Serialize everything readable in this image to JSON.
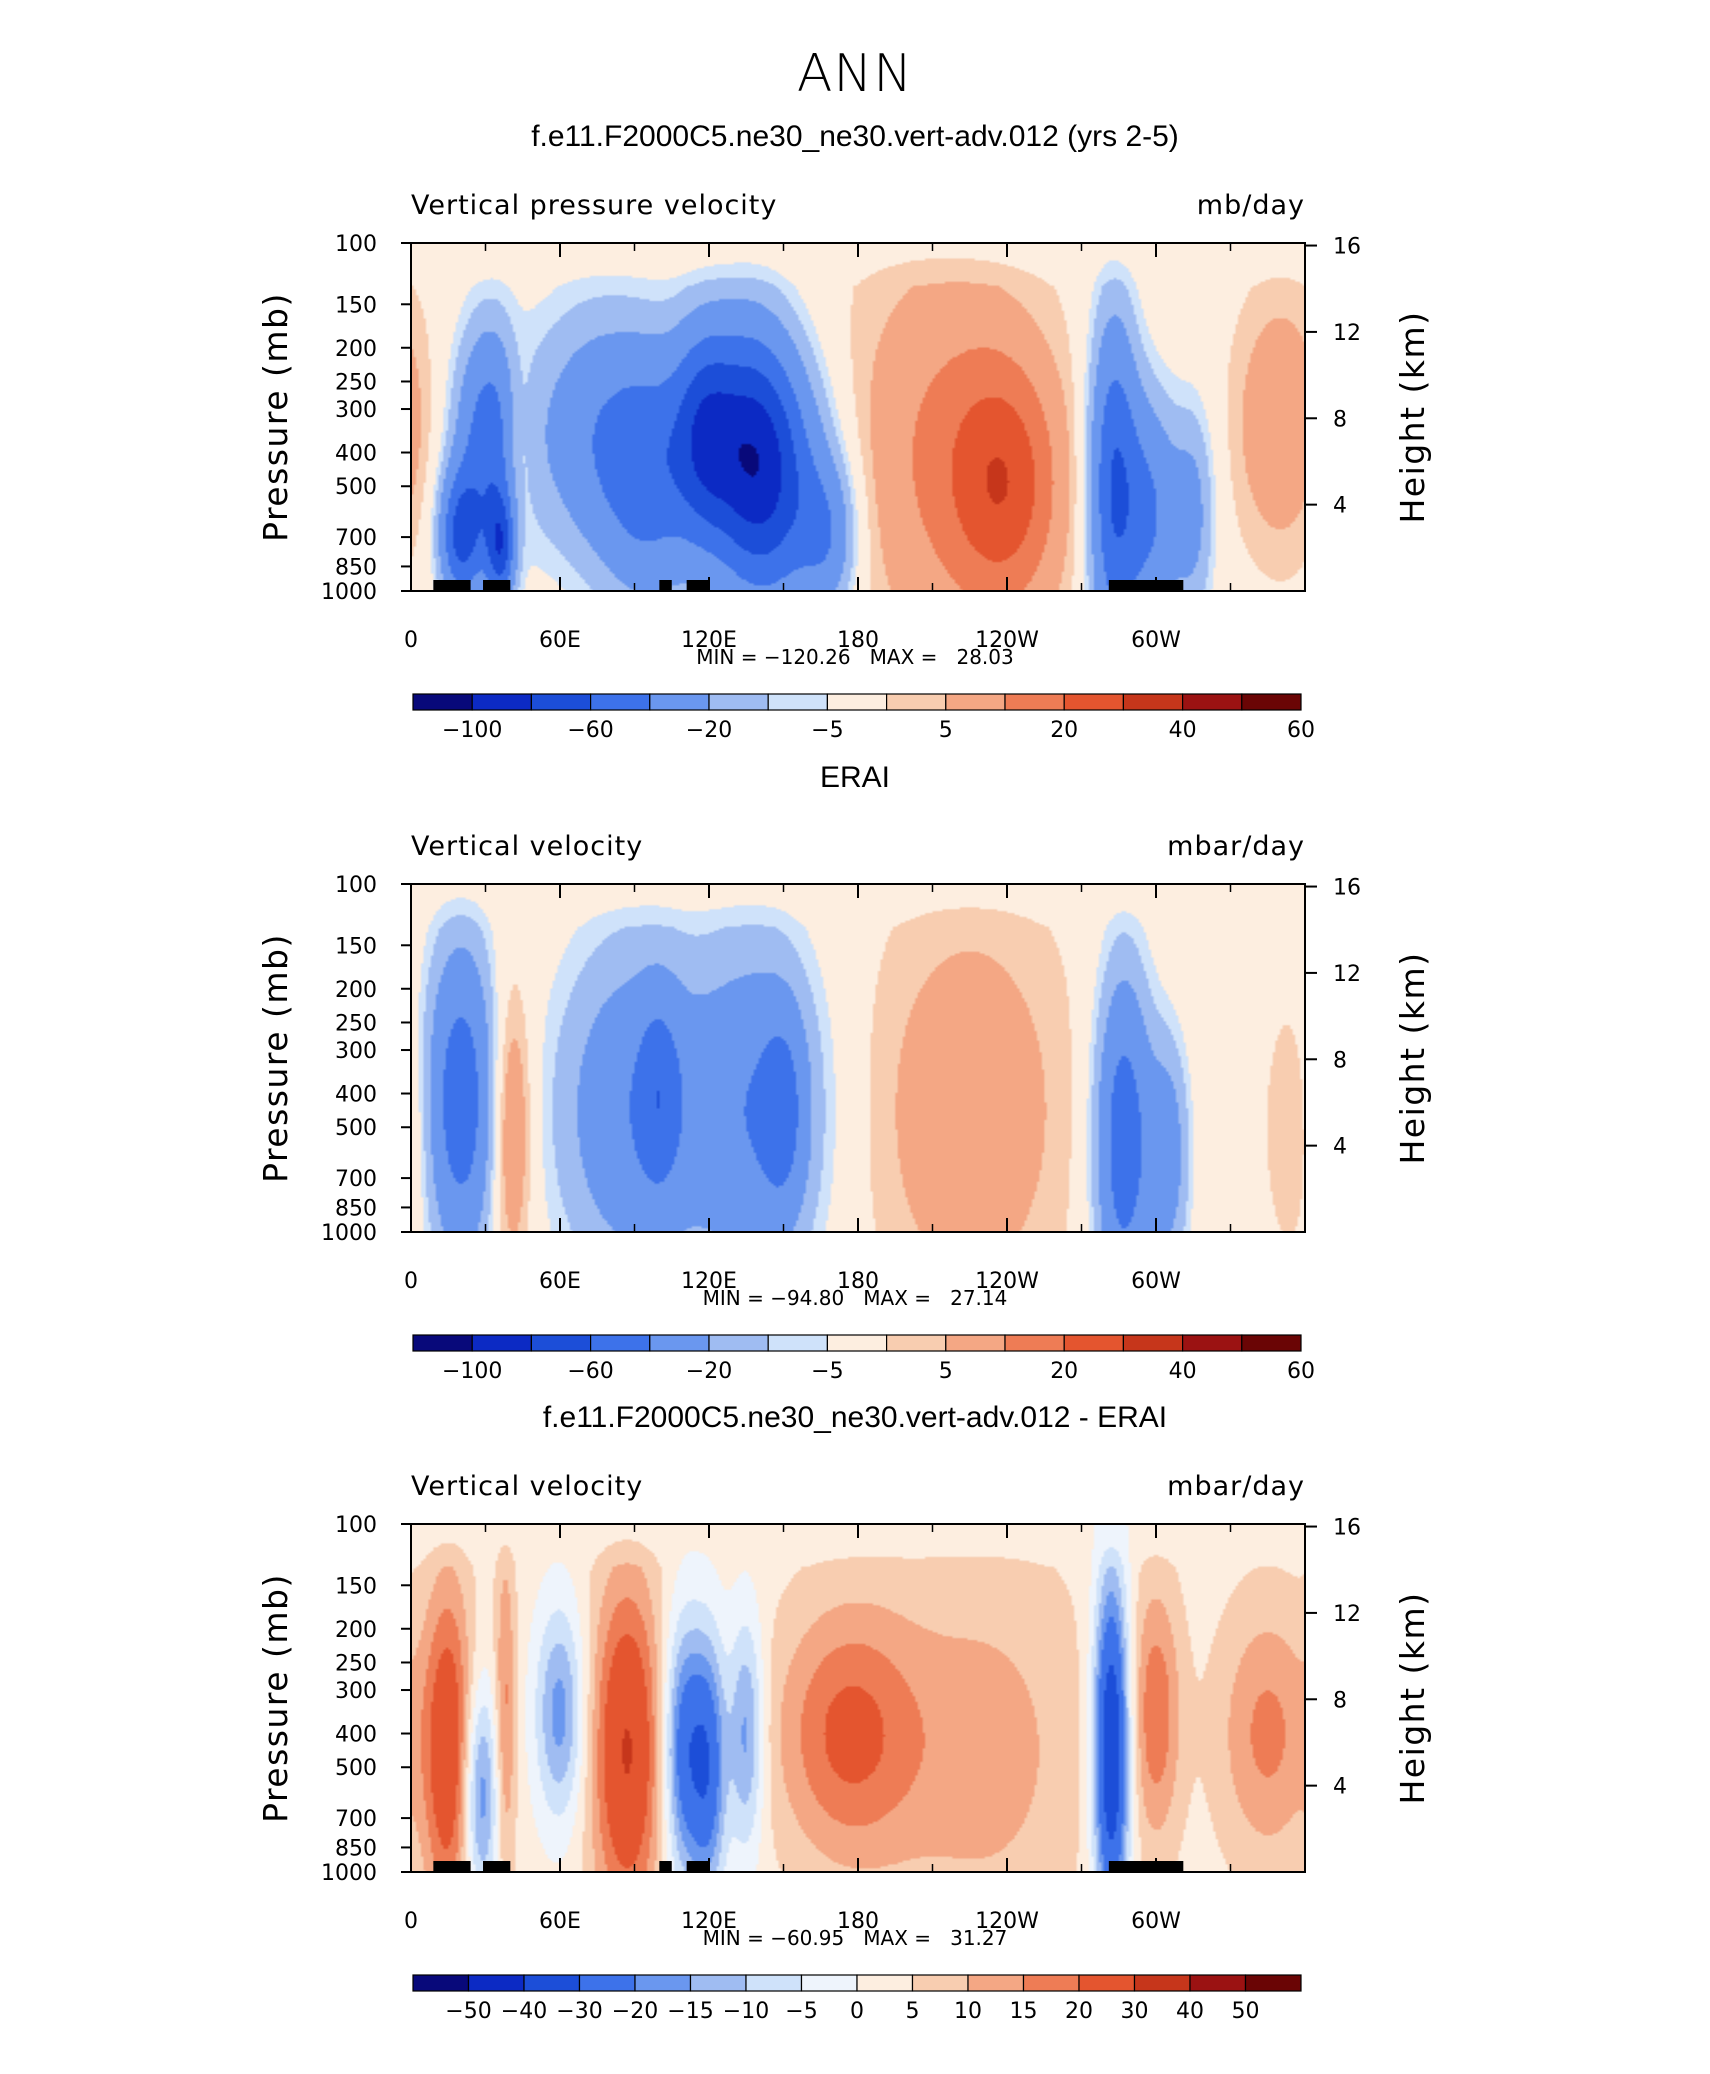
{
  "suptitle": "ANN",
  "chart_data": [
    {
      "type": "heatmap",
      "title": "f.e11.F2000C5.ne30_ne30.vert-adv.012 (yrs 2-5)",
      "variable": "Vertical pressure velocity",
      "units": "mb/day",
      "ylabel": "Pressure (mb)",
      "ylabel_right": "Height (km)",
      "x_ticks": [
        "0",
        "60E",
        "120E",
        "180",
        "120W",
        "60W"
      ],
      "y_ticks": [
        "100",
        "150",
        "200",
        "250",
        "300",
        "400",
        "500",
        "700",
        "850",
        "1000"
      ],
      "y_ticks_right": [
        "16",
        "12",
        "8",
        "4"
      ],
      "min_max": "MIN = −120.26   MAX =   28.03",
      "min": -120.26,
      "max": 28.03,
      "colorbar_labels": [
        "−100",
        "−60",
        "−20",
        "−5",
        "5",
        "20",
        "40",
        "60"
      ],
      "colorbar_colors": [
        "#08097a",
        "#0c2ac4",
        "#1c4ed8",
        "#3d72ea",
        "#6a97ef",
        "#9fbcf2",
        "#cfe2fa",
        "#fdeee0",
        "#f8cdb0",
        "#f4a784",
        "#ee7c55",
        "#e4552f",
        "#c6361b",
        "#9b1212",
        "#6a0505"
      ],
      "land_bars": [
        [
          9,
          24
        ],
        [
          29,
          40
        ],
        [
          100,
          105
        ],
        [
          111,
          120
        ],
        [
          281,
          311
        ]
      ],
      "blobs": [
        {
          "lon": 32,
          "p": 380,
          "wl": 10,
          "wp": 0.55,
          "a": -55
        },
        {
          "lon": 20,
          "p": 700,
          "wl": 6,
          "wp": 0.3,
          "a": -60
        },
        {
          "lon": 36,
          "p": 750,
          "wl": 4,
          "wp": 0.25,
          "a": -60
        },
        {
          "lon": 43,
          "p": 380,
          "wl": 5,
          "wp": 0.45,
          "a": 22
        },
        {
          "lon": 70,
          "p": 350,
          "wl": 16,
          "wp": 0.6,
          "a": -30
        },
        {
          "lon": 96,
          "p": 450,
          "wl": 14,
          "wp": 0.6,
          "a": -50
        },
        {
          "lon": 118,
          "p": 350,
          "wl": 9,
          "wp": 0.5,
          "a": -55
        },
        {
          "lon": 136,
          "p": 400,
          "wl": 12,
          "wp": 0.6,
          "a": -70
        },
        {
          "lon": 150,
          "p": 500,
          "wl": 14,
          "wp": 0.6,
          "a": -45
        },
        {
          "lon": 168,
          "p": 700,
          "wl": 8,
          "wp": 0.35,
          "a": -30
        },
        {
          "lon": 213,
          "p": 400,
          "wl": 26,
          "wp": 0.9,
          "a": 18
        },
        {
          "lon": 240,
          "p": 500,
          "wl": 16,
          "wp": 0.6,
          "a": 28
        },
        {
          "lon": 283,
          "p": 500,
          "wl": 7,
          "wp": 0.8,
          "a": -60
        },
        {
          "lon": 298,
          "p": 600,
          "wl": 8,
          "wp": 0.55,
          "a": -40
        },
        {
          "lon": 315,
          "p": 600,
          "wl": 6,
          "wp": 0.5,
          "a": -25
        },
        {
          "lon": 350,
          "p": 330,
          "wl": 12,
          "wp": 0.55,
          "a": 18
        }
      ]
    },
    {
      "type": "heatmap",
      "title": "ERAI",
      "variable": "Vertical velocity",
      "units": "mbar/day",
      "ylabel": "Pressure (mb)",
      "ylabel_right": "Height (km)",
      "x_ticks": [
        "0",
        "60E",
        "120E",
        "180",
        "120W",
        "60W"
      ],
      "y_ticks": [
        "100",
        "150",
        "200",
        "250",
        "300",
        "400",
        "500",
        "700",
        "850",
        "1000"
      ],
      "y_ticks_right": [
        "16",
        "12",
        "8",
        "4"
      ],
      "min_max": "MIN = −94.80   MAX =   27.14",
      "min": -94.8,
      "max": 27.14,
      "colorbar_labels": [
        "−100",
        "−60",
        "−20",
        "−5",
        "5",
        "20",
        "40",
        "60"
      ],
      "colorbar_colors": [
        "#08097a",
        "#0c2ac4",
        "#1c4ed8",
        "#3d72ea",
        "#6a97ef",
        "#9fbcf2",
        "#cfe2fa",
        "#fdeee0",
        "#f8cdb0",
        "#f4a784",
        "#ee7c55",
        "#e4552f",
        "#c6361b",
        "#9b1212",
        "#6a0505"
      ],
      "land_bars": [],
      "blobs": [
        {
          "lon": 20,
          "p": 420,
          "wl": 10,
          "wp": 0.75,
          "a": -55
        },
        {
          "lon": 40,
          "p": 500,
          "wl": 6,
          "wp": 0.65,
          "a": 24
        },
        {
          "lon": 90,
          "p": 450,
          "wl": 22,
          "wp": 0.8,
          "a": -38
        },
        {
          "lon": 100,
          "p": 400,
          "wl": 6,
          "wp": 0.45,
          "a": -25
        },
        {
          "lon": 140,
          "p": 450,
          "wl": 18,
          "wp": 0.8,
          "a": -38
        },
        {
          "lon": 150,
          "p": 450,
          "wl": 6,
          "wp": 0.45,
          "a": -25
        },
        {
          "lon": 225,
          "p": 450,
          "wl": 26,
          "wp": 0.9,
          "a": 16
        },
        {
          "lon": 287,
          "p": 550,
          "wl": 8,
          "wp": 0.8,
          "a": -55
        },
        {
          "lon": 305,
          "p": 600,
          "wl": 6,
          "wp": 0.55,
          "a": -30
        },
        {
          "lon": 357,
          "p": 500,
          "wl": 8,
          "wp": 0.55,
          "a": 10
        }
      ]
    },
    {
      "type": "heatmap",
      "title": "f.e11.F2000C5.ne30_ne30.vert-adv.012 - ERAI",
      "variable": "Vertical velocity",
      "units": "mbar/day",
      "ylabel": "Pressure (mb)",
      "ylabel_right": "Height (km)",
      "x_ticks": [
        "0",
        "60E",
        "120E",
        "180",
        "120W",
        "60W"
      ],
      "y_ticks": [
        "100",
        "150",
        "200",
        "250",
        "300",
        "400",
        "500",
        "700",
        "850",
        "1000"
      ],
      "y_ticks_right": [
        "16",
        "12",
        "8",
        "4"
      ],
      "min_max": "MIN = −60.95   MAX =   31.27",
      "min": -60.95,
      "max": 31.27,
      "colorbar_labels": [
        "−50",
        "−40",
        "−30",
        "−20",
        "−15",
        "−10",
        "−5",
        "0",
        "5",
        "10",
        "15",
        "20",
        "30",
        "40",
        "50"
      ],
      "colorbar_colors": [
        "#08097a",
        "#0c2ac4",
        "#1c4ed8",
        "#3d72ea",
        "#6a97ef",
        "#9fbcf2",
        "#cfe2fa",
        "#eef4fc",
        "#fdeee0",
        "#f8cdb0",
        "#f4a784",
        "#ee7c55",
        "#e4552f",
        "#c6361b",
        "#9b1212",
        "#6a0505"
      ],
      "land_bars": [
        [
          9,
          24
        ],
        [
          29,
          40
        ],
        [
          100,
          105
        ],
        [
          111,
          120
        ],
        [
          281,
          311
        ]
      ],
      "blobs": [
        {
          "lon": 15,
          "p": 450,
          "wl": 7,
          "wp": 0.8,
          "a": 24
        },
        {
          "lon": 28,
          "p": 600,
          "wl": 5,
          "wp": 0.5,
          "a": -22
        },
        {
          "lon": 38,
          "p": 350,
          "wl": 3,
          "wp": 0.8,
          "a": 14
        },
        {
          "lon": 60,
          "p": 350,
          "wl": 7,
          "wp": 0.5,
          "a": -20
        },
        {
          "lon": 87,
          "p": 450,
          "wl": 10,
          "wp": 0.8,
          "a": 28
        },
        {
          "lon": 110,
          "p": 450,
          "wl": 6,
          "wp": 0.6,
          "a": -28
        },
        {
          "lon": 120,
          "p": 500,
          "wl": 5,
          "wp": 0.6,
          "a": -26
        },
        {
          "lon": 135,
          "p": 400,
          "wl": 5,
          "wp": 0.55,
          "a": -20
        },
        {
          "lon": 175,
          "p": 400,
          "wl": 20,
          "wp": 0.6,
          "a": 18
        },
        {
          "lon": 230,
          "p": 450,
          "wl": 30,
          "wp": 0.9,
          "a": 10
        },
        {
          "lon": 282,
          "p": 450,
          "wl": 5,
          "wp": 0.8,
          "a": -45
        },
        {
          "lon": 300,
          "p": 350,
          "wl": 7,
          "wp": 0.6,
          "a": 16
        },
        {
          "lon": 345,
          "p": 400,
          "wl": 14,
          "wp": 0.6,
          "a": 14
        }
      ]
    }
  ]
}
